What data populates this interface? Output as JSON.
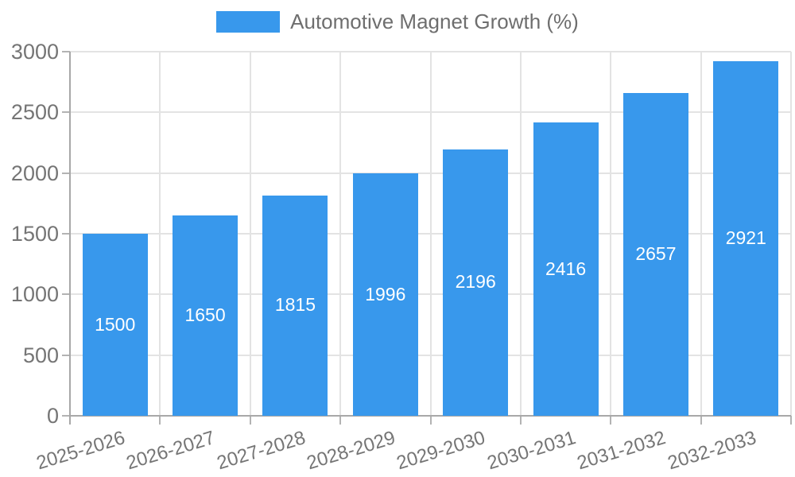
{
  "legend": {
    "label": "Automotive Magnet Growth (%)"
  },
  "chart_data": {
    "type": "bar",
    "title": "Automotive Magnet Growth (%)",
    "categories": [
      "2025-2026",
      "2026-2027",
      "2027-2028",
      "2028-2029",
      "2029-2030",
      "2030-2031",
      "2031-2032",
      "2032-2033"
    ],
    "values": [
      1500,
      1650,
      1815,
      1996,
      2196,
      2416,
      2657,
      2921
    ],
    "xlabel": "",
    "ylabel": "",
    "ylim": [
      0,
      3000
    ],
    "ytick_step": 500,
    "y_ticks": [
      0,
      500,
      1000,
      1500,
      2000,
      2500,
      3000
    ],
    "grid": true,
    "legend_position": "top",
    "bar_labels_inside": true,
    "colors": {
      "bar": "#3898ec",
      "bar_label": "#ffffff",
      "tick_text": "#757575",
      "legend_text": "#6e6e6e",
      "gridline": "#e3e3e3",
      "axis_line": "#a8a8a8"
    }
  }
}
